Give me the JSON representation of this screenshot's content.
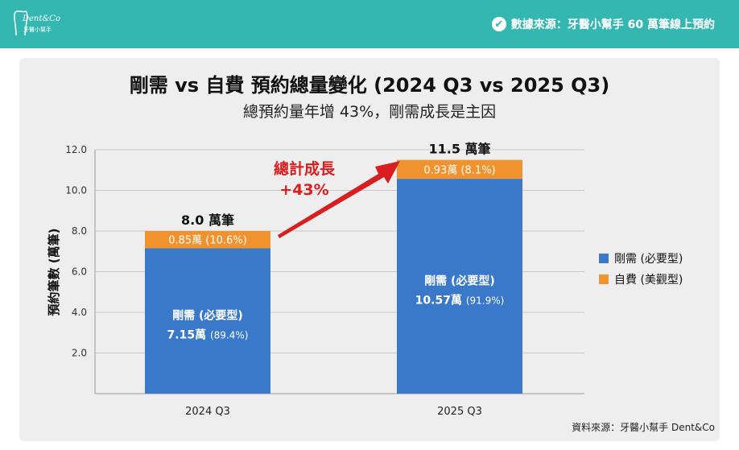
{
  "header": {
    "logo_text": "Dent&Co",
    "logo_sub": "牙醫小幫手",
    "source": "數據來源：牙醫小幫手 60 萬筆線上預約",
    "source_icon": "verified-check-icon",
    "color": "#35b7b1"
  },
  "chart_data": {
    "type": "bar",
    "stacked": true,
    "title": "剛需 vs 自費 預約總量變化 (2024 Q3 vs 2025 Q3)",
    "subtitle": "總預約量年增 43%，剛需成長是主因",
    "ylabel": "預約筆數 (萬筆)",
    "xlabel": "",
    "ylim": [
      0,
      12
    ],
    "yticks": [
      "2.0",
      "4.0",
      "6.0",
      "8.0",
      "10.0",
      "12.0"
    ],
    "grid": true,
    "categories": [
      "2024 Q3",
      "2025 Q3"
    ],
    "series": [
      {
        "name": "剛需 (必要型)",
        "color": "#3a78c9",
        "values": [
          7.15,
          10.57
        ],
        "labels": [
          [
            "剛需 (必要型)",
            "7.15萬",
            "(89.4%)"
          ],
          [
            "剛需 (必要型)",
            "10.57萬",
            "(91.9%)"
          ]
        ]
      },
      {
        "name": "自費 (美觀型)",
        "color": "#f0922e",
        "values": [
          0.85,
          0.93
        ],
        "labels": [
          [
            "0.85萬",
            "(10.6%)"
          ],
          [
            "0.93萬",
            "(8.1%)"
          ]
        ]
      }
    ],
    "totals": [
      "8.0 萬筆",
      "11.5 萬筆"
    ],
    "annotation": {
      "line1": "總計成長",
      "line2": "+43%",
      "color": "#d81e1e"
    },
    "legend_position": "right"
  },
  "footer": "資料來源：牙醫小幫手 Dent&Co"
}
